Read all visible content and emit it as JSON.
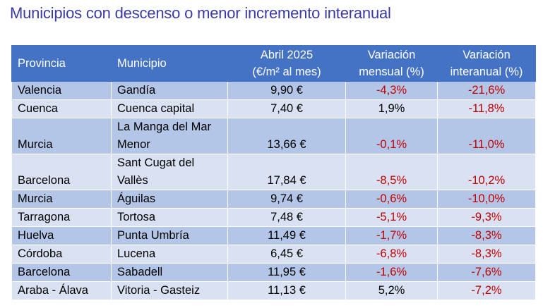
{
  "title": "Municipios con descenso o menor incremento interanual",
  "headers": {
    "provincia": "Provincia",
    "municipio": "Municipio",
    "abril_line1": "Abril 2025",
    "abril_line2": "(€/m² al mes)",
    "mensual_line1": "Variación",
    "mensual_line2": "mensual (%)",
    "interanual_line1": "Variación",
    "interanual_line2": "interanual (%)"
  },
  "colors": {
    "title": "#3a3aa6",
    "header_bg": "#4472c4",
    "row_odd": "#b4c6e7",
    "row_even": "#d9e1f2",
    "negative": "#c00000"
  },
  "rows": [
    {
      "provincia": "Valencia",
      "municipio": "Gandía",
      "precio": "9,90 €",
      "mensual": "-4,3%",
      "interanual": "-21,6%"
    },
    {
      "provincia": "Cuenca",
      "municipio": "Cuenca capital",
      "precio": "7,40 €",
      "mensual": "1,9%",
      "interanual": "-11,8%"
    },
    {
      "provincia": "Murcia",
      "municipio": "La Manga del Mar Menor",
      "precio": "13,66 €",
      "mensual": "-0,1%",
      "interanual": "-11,0%"
    },
    {
      "provincia": "Barcelona",
      "municipio": "Sant Cugat del Vallès",
      "precio": "17,84 €",
      "mensual": "-8,5%",
      "interanual": "-10,2%"
    },
    {
      "provincia": "Murcia",
      "municipio": "Águilas",
      "precio": "9,74 €",
      "mensual": "-0,6%",
      "interanual": "-10,0%"
    },
    {
      "provincia": "Tarragona",
      "municipio": "Tortosa",
      "precio": "7,48 €",
      "mensual": "-5,1%",
      "interanual": "-9,3%"
    },
    {
      "provincia": "Huelva",
      "municipio": "Punta Umbría",
      "precio": "11,49 €",
      "mensual": "-1,7%",
      "interanual": "-8,3%"
    },
    {
      "provincia": "Córdoba",
      "municipio": "Lucena",
      "precio": "6,45 €",
      "mensual": "-6,8%",
      "interanual": "-8,3%"
    },
    {
      "provincia": "Barcelona",
      "municipio": "Sabadell",
      "precio": "11,95 €",
      "mensual": "-1,6%",
      "interanual": "-7,6%"
    },
    {
      "provincia": "Araba - Álava",
      "municipio": "Vitoria - Gasteiz",
      "precio": "11,13 €",
      "mensual": "5,2%",
      "interanual": "-7,2%"
    }
  ]
}
